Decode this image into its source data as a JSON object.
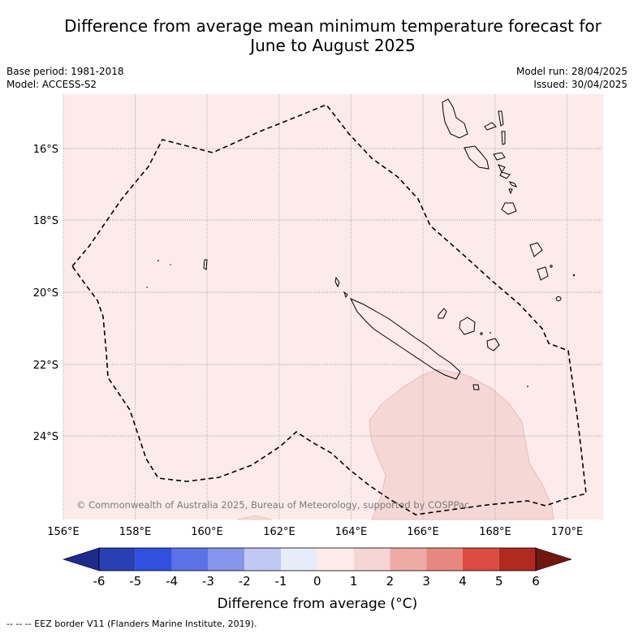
{
  "title_line1": "Difference from average mean minimum temperature forecast for",
  "title_line2": "June to August 2025",
  "meta": {
    "base_period": "Base period: 1981-2018",
    "model": "Model: ACCESS-S2",
    "model_run": "Model run: 28/04/2025",
    "issued": "Issued: 30/04/2025"
  },
  "copyright": "© Commonwealth of Australia 2025, Bureau of Meteorology, supported by COSPPac",
  "lon_labels": [
    "156°E",
    "158°E",
    "160°E",
    "162°E",
    "164°E",
    "166°E",
    "168°E",
    "170°E"
  ],
  "lat_labels": [
    "16°S",
    "18°S",
    "20°S",
    "22°S",
    "24°S"
  ],
  "colorbar": {
    "label": "Difference from average (°C)",
    "ticks": [
      "-6",
      "-5",
      "-4",
      "-3",
      "-2",
      "-1",
      "0",
      "1",
      "2",
      "3",
      "4",
      "5",
      "6"
    ],
    "colors": [
      "#1e2a8c",
      "#2840b4",
      "#3050e0",
      "#5a72e6",
      "#8696ea",
      "#c0c8f4",
      "#e8ecfa",
      "#fdeceb",
      "#f6d6d3",
      "#eeaba6",
      "#e68880",
      "#dc4c40",
      "#b02a22",
      "#701810"
    ]
  },
  "map_background_color": "#fcebea",
  "warm_region_color": "#f5d8d5",
  "footer": "-- -- -- EEZ border V11 (Flanders Marine Institute, 2019)."
}
